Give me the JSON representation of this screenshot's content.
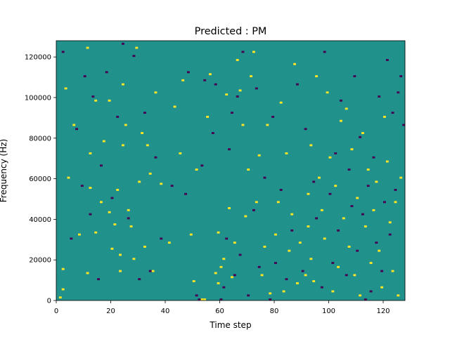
{
  "chart_data": {
    "type": "heatmap",
    "title": "Predicted : PM",
    "xlabel": "Time step",
    "ylabel": "Frequency (Hz)",
    "xlim": [
      0,
      128
    ],
    "ylim": [
      0,
      128000
    ],
    "x_ticks": [
      0,
      20,
      40,
      60,
      80,
      100,
      120
    ],
    "y_ticks": [
      0,
      20000,
      40000,
      60000,
      80000,
      100000,
      120000
    ],
    "x_tick_labels": [
      "0",
      "20",
      "40",
      "60",
      "80",
      "100",
      "120"
    ],
    "y_tick_labels": [
      "0",
      "20000",
      "40000",
      "60000",
      "80000",
      "100000",
      "120000"
    ],
    "grid": false,
    "n_time_steps": 128,
    "n_frequency_bins": 128,
    "background_value": 0.5,
    "colormap": {
      "low": "#440154",
      "mid": "#21918c",
      "high": "#fde725"
    },
    "high_cells": [
      {
        "t": 1,
        "f_bin": 1
      },
      {
        "t": 2,
        "f_bin": 5
      },
      {
        "t": 2,
        "f_bin": 15
      },
      {
        "t": 3,
        "f_bin": 104
      },
      {
        "t": 4,
        "f_bin": 60
      },
      {
        "t": 6,
        "f_bin": 86
      },
      {
        "t": 8,
        "f_bin": 32
      },
      {
        "t": 11,
        "f_bin": 13
      },
      {
        "t": 11,
        "f_bin": 124
      },
      {
        "t": 12,
        "f_bin": 72
      },
      {
        "t": 12,
        "f_bin": 55
      },
      {
        "t": 14,
        "f_bin": 33
      },
      {
        "t": 14,
        "f_bin": 98
      },
      {
        "t": 16,
        "f_bin": 48
      },
      {
        "t": 17,
        "f_bin": 78
      },
      {
        "t": 19,
        "f_bin": 43
      },
      {
        "t": 19,
        "f_bin": 98
      },
      {
        "t": 20,
        "f_bin": 25
      },
      {
        "t": 21,
        "f_bin": 37
      },
      {
        "t": 22,
        "f_bin": 54
      },
      {
        "t": 23,
        "f_bin": 22
      },
      {
        "t": 23,
        "f_bin": 14
      },
      {
        "t": 24,
        "f_bin": 76
      },
      {
        "t": 24,
        "f_bin": 106
      },
      {
        "t": 25,
        "f_bin": 86
      },
      {
        "t": 26,
        "f_bin": 44
      },
      {
        "t": 27,
        "f_bin": 36
      },
      {
        "t": 28,
        "f_bin": 20
      },
      {
        "t": 29,
        "f_bin": 124
      },
      {
        "t": 30,
        "f_bin": 58
      },
      {
        "t": 31,
        "f_bin": 82
      },
      {
        "t": 32,
        "f_bin": 26
      },
      {
        "t": 33,
        "f_bin": 76
      },
      {
        "t": 34,
        "f_bin": 62
      },
      {
        "t": 35,
        "f_bin": 14
      },
      {
        "t": 36,
        "f_bin": 102
      },
      {
        "t": 38,
        "f_bin": 57
      },
      {
        "t": 41,
        "f_bin": 28
      },
      {
        "t": 43,
        "f_bin": 95
      },
      {
        "t": 45,
        "f_bin": 72
      },
      {
        "t": 46,
        "f_bin": 108
      },
      {
        "t": 49,
        "f_bin": 32
      },
      {
        "t": 50,
        "f_bin": 9
      },
      {
        "t": 51,
        "f_bin": 64
      },
      {
        "t": 53,
        "f_bin": 0
      },
      {
        "t": 54,
        "f_bin": 0
      },
      {
        "t": 55,
        "f_bin": 90
      },
      {
        "t": 56,
        "f_bin": 111
      },
      {
        "t": 58,
        "f_bin": 13
      },
      {
        "t": 59,
        "f_bin": 8
      },
      {
        "t": 59,
        "f_bin": 33
      },
      {
        "t": 60,
        "f_bin": 16
      },
      {
        "t": 61,
        "f_bin": 20
      },
      {
        "t": 62,
        "f_bin": 101
      },
      {
        "t": 63,
        "f_bin": 45
      },
      {
        "t": 64,
        "f_bin": 11
      },
      {
        "t": 65,
        "f_bin": 28
      },
      {
        "t": 66,
        "f_bin": 118
      },
      {
        "t": 67,
        "f_bin": 103
      },
      {
        "t": 68,
        "f_bin": 86
      },
      {
        "t": 69,
        "f_bin": 41
      },
      {
        "t": 70,
        "f_bin": 64
      },
      {
        "t": 71,
        "f_bin": 110
      },
      {
        "t": 72,
        "f_bin": 122
      },
      {
        "t": 73,
        "f_bin": 48
      },
      {
        "t": 74,
        "f_bin": 71
      },
      {
        "t": 75,
        "f_bin": 12
      },
      {
        "t": 76,
        "f_bin": 26
      },
      {
        "t": 77,
        "f_bin": 86
      },
      {
        "t": 78,
        "f_bin": 3
      },
      {
        "t": 80,
        "f_bin": 32
      },
      {
        "t": 81,
        "f_bin": 48
      },
      {
        "t": 82,
        "f_bin": 97
      },
      {
        "t": 83,
        "f_bin": 4
      },
      {
        "t": 84,
        "f_bin": 72
      },
      {
        "t": 85,
        "f_bin": 24
      },
      {
        "t": 86,
        "f_bin": 42
      },
      {
        "t": 87,
        "f_bin": 116
      },
      {
        "t": 88,
        "f_bin": 8
      },
      {
        "t": 89,
        "f_bin": 28
      },
      {
        "t": 91,
        "f_bin": 12
      },
      {
        "t": 92,
        "f_bin": 36
      },
      {
        "t": 92,
        "f_bin": 52
      },
      {
        "t": 93,
        "f_bin": 20
      },
      {
        "t": 93,
        "f_bin": 76
      },
      {
        "t": 94,
        "f_bin": 9
      },
      {
        "t": 95,
        "f_bin": 110
      },
      {
        "t": 96,
        "f_bin": 60
      },
      {
        "t": 97,
        "f_bin": 44
      },
      {
        "t": 98,
        "f_bin": 30
      },
      {
        "t": 99,
        "f_bin": 102
      },
      {
        "t": 100,
        "f_bin": 70
      },
      {
        "t": 101,
        "f_bin": 4
      },
      {
        "t": 102,
        "f_bin": 56
      },
      {
        "t": 103,
        "f_bin": 16
      },
      {
        "t": 104,
        "f_bin": 88
      },
      {
        "t": 105,
        "f_bin": 40
      },
      {
        "t": 106,
        "f_bin": 94
      },
      {
        "t": 107,
        "f_bin": 26
      },
      {
        "t": 108,
        "f_bin": 74
      },
      {
        "t": 109,
        "f_bin": 12
      },
      {
        "t": 110,
        "f_bin": 50
      },
      {
        "t": 111,
        "f_bin": 2
      },
      {
        "t": 112,
        "f_bin": 82
      },
      {
        "t": 113,
        "f_bin": 36
      },
      {
        "t": 114,
        "f_bin": 64
      },
      {
        "t": 115,
        "f_bin": 18
      },
      {
        "t": 116,
        "f_bin": 44
      },
      {
        "t": 117,
        "f_bin": 58
      },
      {
        "t": 118,
        "f_bin": 24
      },
      {
        "t": 119,
        "f_bin": 6
      },
      {
        "t": 120,
        "f_bin": 90
      },
      {
        "t": 121,
        "f_bin": 68
      },
      {
        "t": 122,
        "f_bin": 38
      },
      {
        "t": 123,
        "f_bin": 14
      },
      {
        "t": 124,
        "f_bin": 48
      },
      {
        "t": 125,
        "f_bin": 2
      },
      {
        "t": 126,
        "f_bin": 60
      }
    ],
    "low_cells": [
      {
        "t": 2,
        "f_bin": 122
      },
      {
        "t": 5,
        "f_bin": 30
      },
      {
        "t": 7,
        "f_bin": 84
      },
      {
        "t": 9,
        "f_bin": 56
      },
      {
        "t": 10,
        "f_bin": 110
      },
      {
        "t": 12,
        "f_bin": 42
      },
      {
        "t": 13,
        "f_bin": 100
      },
      {
        "t": 15,
        "f_bin": 10
      },
      {
        "t": 16,
        "f_bin": 66
      },
      {
        "t": 18,
        "f_bin": 112
      },
      {
        "t": 20,
        "f_bin": 50
      },
      {
        "t": 22,
        "f_bin": 90
      },
      {
        "t": 24,
        "f_bin": 126
      },
      {
        "t": 26,
        "f_bin": 40
      },
      {
        "t": 28,
        "f_bin": 120
      },
      {
        "t": 30,
        "f_bin": 10
      },
      {
        "t": 32,
        "f_bin": 92
      },
      {
        "t": 34,
        "f_bin": 14
      },
      {
        "t": 36,
        "f_bin": 70
      },
      {
        "t": 38,
        "f_bin": 30
      },
      {
        "t": 42,
        "f_bin": 56
      },
      {
        "t": 47,
        "f_bin": 52
      },
      {
        "t": 48,
        "f_bin": 112
      },
      {
        "t": 51,
        "f_bin": 2
      },
      {
        "t": 52,
        "f_bin": 0
      },
      {
        "t": 53,
        "f_bin": 66
      },
      {
        "t": 54,
        "f_bin": 108
      },
      {
        "t": 57,
        "f_bin": 82
      },
      {
        "t": 58,
        "f_bin": 106
      },
      {
        "t": 60,
        "f_bin": 0
      },
      {
        "t": 61,
        "f_bin": 6
      },
      {
        "t": 62,
        "f_bin": 30
      },
      {
        "t": 63,
        "f_bin": 74
      },
      {
        "t": 64,
        "f_bin": 92
      },
      {
        "t": 65,
        "f_bin": 12
      },
      {
        "t": 66,
        "f_bin": 100
      },
      {
        "t": 67,
        "f_bin": 22
      },
      {
        "t": 68,
        "f_bin": 122
      },
      {
        "t": 70,
        "f_bin": 2
      },
      {
        "t": 72,
        "f_bin": 44
      },
      {
        "t": 73,
        "f_bin": 104
      },
      {
        "t": 74,
        "f_bin": 16
      },
      {
        "t": 76,
        "f_bin": 60
      },
      {
        "t": 78,
        "f_bin": 0
      },
      {
        "t": 79,
        "f_bin": 90
      },
      {
        "t": 80,
        "f_bin": 18
      },
      {
        "t": 82,
        "f_bin": 54
      },
      {
        "t": 84,
        "f_bin": 10
      },
      {
        "t": 86,
        "f_bin": 34
      },
      {
        "t": 88,
        "f_bin": 106
      },
      {
        "t": 90,
        "f_bin": 14
      },
      {
        "t": 91,
        "f_bin": 84
      },
      {
        "t": 94,
        "f_bin": 58
      },
      {
        "t": 95,
        "f_bin": 40
      },
      {
        "t": 97,
        "f_bin": 6
      },
      {
        "t": 98,
        "f_bin": 122
      },
      {
        "t": 100,
        "f_bin": 52
      },
      {
        "t": 101,
        "f_bin": 18
      },
      {
        "t": 102,
        "f_bin": 72
      },
      {
        "t": 103,
        "f_bin": 34
      },
      {
        "t": 104,
        "f_bin": 98
      },
      {
        "t": 106,
        "f_bin": 12
      },
      {
        "t": 107,
        "f_bin": 64
      },
      {
        "t": 108,
        "f_bin": 46
      },
      {
        "t": 109,
        "f_bin": 110
      },
      {
        "t": 110,
        "f_bin": 24
      },
      {
        "t": 111,
        "f_bin": 80
      },
      {
        "t": 112,
        "f_bin": 42
      },
      {
        "t": 113,
        "f_bin": 0
      },
      {
        "t": 114,
        "f_bin": 56
      },
      {
        "t": 115,
        "f_bin": 4
      },
      {
        "t": 116,
        "f_bin": 70
      },
      {
        "t": 117,
        "f_bin": 28
      },
      {
        "t": 118,
        "f_bin": 100
      },
      {
        "t": 119,
        "f_bin": 14
      },
      {
        "t": 120,
        "f_bin": 48
      },
      {
        "t": 121,
        "f_bin": 118
      },
      {
        "t": 122,
        "f_bin": 32
      },
      {
        "t": 123,
        "f_bin": 92
      },
      {
        "t": 124,
        "f_bin": 54
      },
      {
        "t": 125,
        "f_bin": 102
      },
      {
        "t": 126,
        "f_bin": 110
      },
      {
        "t": 127,
        "f_bin": 86
      }
    ]
  }
}
